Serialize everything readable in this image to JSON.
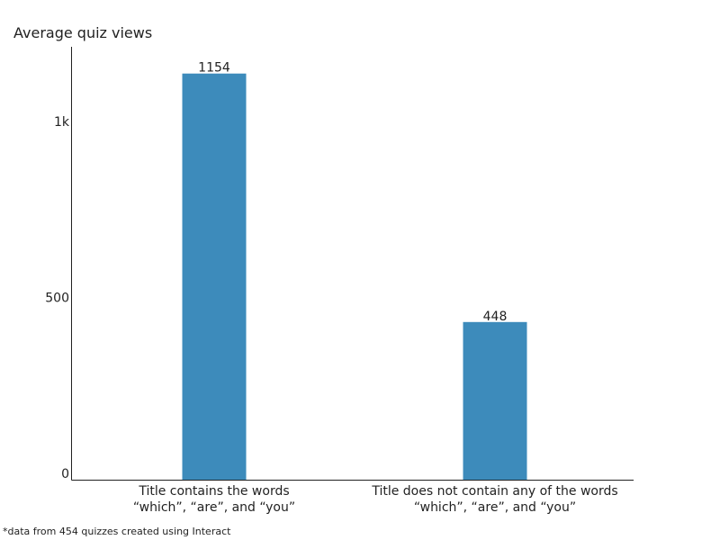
{
  "chart_data": {
    "type": "bar",
    "title": "",
    "ylabel": "Average quiz views",
    "xlabel": "",
    "ylim": [
      0,
      1230
    ],
    "yticks": [
      {
        "value": 0,
        "label": "0"
      },
      {
        "value": 500,
        "label": "500"
      },
      {
        "value": 1000,
        "label": "1k"
      }
    ],
    "grid": false,
    "bar_color": "#3d8bbb",
    "categories": [
      [
        "Title contains the words",
        "“which”, “are”, and “you”"
      ],
      [
        "Title does not contain any of the words",
        "“which”, “are”, and “you”"
      ]
    ],
    "values": [
      1154,
      448
    ],
    "data_labels": [
      "1154",
      "448"
    ]
  },
  "footnote": "*data from 454 quizzes created using Interact"
}
